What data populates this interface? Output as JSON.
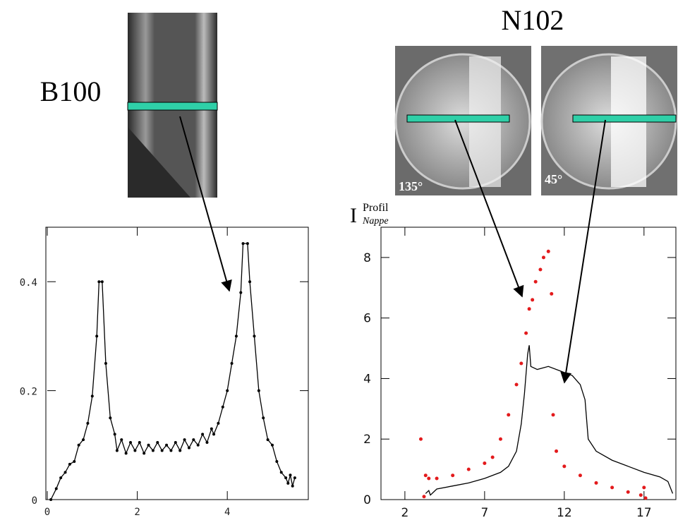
{
  "labels": {
    "left_title": "B100",
    "right_title": "N102",
    "image1_angle": "135°",
    "image2_angle": "45°"
  },
  "chart_data": [
    {
      "type": "line",
      "xlim": [
        0,
        5.8
      ],
      "ylim": [
        0,
        0.5
      ],
      "xticks": [
        0,
        2,
        4
      ],
      "yticks": [
        0,
        0.2,
        0.4
      ],
      "series": [
        {
          "color": "#000000",
          "markers": true,
          "x": [
            0.08,
            0.2,
            0.3,
            0.4,
            0.5,
            0.6,
            0.7,
            0.8,
            0.9,
            1.0,
            1.1,
            1.15,
            1.22,
            1.3,
            1.4,
            1.5,
            1.55,
            1.65,
            1.75,
            1.85,
            1.95,
            2.05,
            2.15,
            2.25,
            2.35,
            2.45,
            2.55,
            2.65,
            2.75,
            2.85,
            2.95,
            3.05,
            3.15,
            3.25,
            3.35,
            3.45,
            3.55,
            3.65,
            3.7,
            3.8,
            3.9,
            4.0,
            4.1,
            4.2,
            4.3,
            4.35,
            4.45,
            4.5,
            4.6,
            4.7,
            4.8,
            4.9,
            5.0,
            5.1,
            5.2,
            5.3,
            5.35,
            5.4,
            5.45,
            5.5
          ],
          "values": [
            0,
            0.02,
            0.04,
            0.05,
            0.065,
            0.07,
            0.1,
            0.11,
            0.14,
            0.19,
            0.3,
            0.4,
            0.4,
            0.25,
            0.15,
            0.12,
            0.09,
            0.11,
            0.085,
            0.105,
            0.09,
            0.105,
            0.085,
            0.1,
            0.09,
            0.105,
            0.09,
            0.1,
            0.09,
            0.105,
            0.09,
            0.11,
            0.095,
            0.11,
            0.1,
            0.12,
            0.105,
            0.13,
            0.12,
            0.14,
            0.17,
            0.2,
            0.25,
            0.3,
            0.38,
            0.47,
            0.47,
            0.4,
            0.3,
            0.2,
            0.15,
            0.11,
            0.1,
            0.07,
            0.05,
            0.04,
            0.03,
            0.045,
            0.025,
            0.04
          ]
        }
      ]
    },
    {
      "type": "line",
      "xlim": [
        0.5,
        19
      ],
      "ylim": [
        0,
        9
      ],
      "xticks": [
        2,
        7,
        12,
        17
      ],
      "yticks": [
        0,
        2,
        4,
        6,
        8
      ],
      "y_label": {
        "base": "I",
        "sup": "Profil",
        "sub": "Nappe"
      },
      "series": [
        {
          "type": "line",
          "color": "#000000",
          "x": [
            3.3,
            3.5,
            3.6,
            4,
            5,
            6,
            7,
            8,
            8.5,
            9,
            9.3,
            9.5,
            9.7,
            9.8,
            9.9,
            10.3,
            11,
            12,
            12.5,
            13,
            13.3,
            13.5,
            14,
            15,
            16,
            17,
            18,
            18.5,
            18.8
          ],
          "values": [
            0.2,
            0.3,
            0.15,
            0.35,
            0.45,
            0.55,
            0.7,
            0.9,
            1.1,
            1.6,
            2.5,
            3.5,
            4.8,
            5.1,
            4.4,
            4.3,
            4.4,
            4.2,
            4.1,
            3.8,
            3.3,
            2.0,
            1.6,
            1.3,
            1.1,
            0.9,
            0.75,
            0.6,
            0.2
          ]
        },
        {
          "type": "scatter",
          "color": "#e31a1c",
          "x": [
            3,
            3.2,
            3.3,
            3.5,
            4,
            5,
            6,
            7,
            7.5,
            8,
            8.5,
            9,
            9.3,
            9.6,
            9.8,
            10,
            10.2,
            10.5,
            10.7,
            11,
            11.2,
            11.3,
            11.5,
            12,
            13,
            14,
            15,
            16,
            16.8,
            17,
            17.1
          ],
          "values": [
            2.0,
            0.1,
            0.8,
            0.7,
            0.7,
            0.8,
            1.0,
            1.2,
            1.4,
            2.0,
            2.8,
            3.8,
            4.5,
            5.5,
            6.3,
            6.6,
            7.2,
            7.6,
            8.0,
            8.2,
            6.8,
            2.8,
            1.6,
            1.1,
            0.8,
            0.55,
            0.4,
            0.25,
            0.15,
            0.4,
            0.05
          ]
        }
      ]
    }
  ]
}
